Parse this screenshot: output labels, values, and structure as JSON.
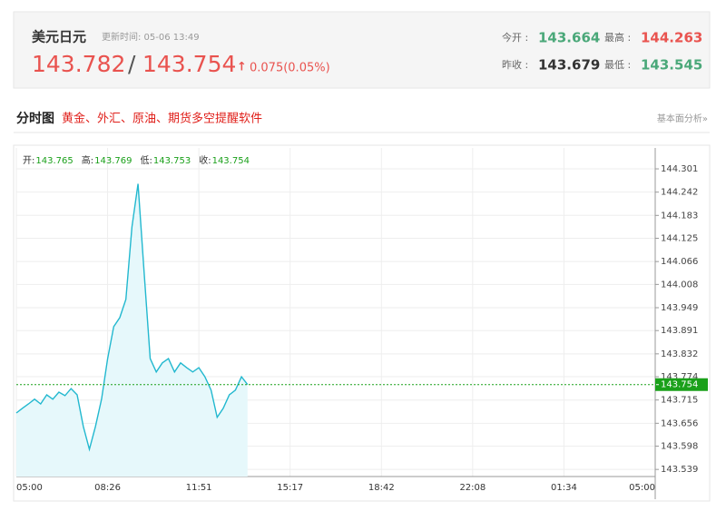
{
  "header": {
    "name": "美元日元",
    "update_time": "更新时间: 05-06 13:49",
    "bid": 143.782,
    "separator": "/",
    "ask": 143.754,
    "arrow": "↑",
    "change": "0.075(0.05%)",
    "stats": [
      {
        "label": "今开 :",
        "value": 143.664,
        "tone": "green"
      },
      {
        "label": "最高 :",
        "value": 144.263,
        "tone": "red"
      },
      {
        "label": "昨收 :",
        "value": 143.679,
        "tone": "dark"
      },
      {
        "label": "最低 :",
        "value": 143.545,
        "tone": "green"
      }
    ]
  },
  "section": {
    "title": "分时图",
    "promo": "黄金、外汇、原油、期货多空提醒软件",
    "link": "基本面分析»"
  },
  "chart_data": {
    "type": "line",
    "ohlc": [
      {
        "label": "开:",
        "value": 143.765
      },
      {
        "label": "高:",
        "value": 143.769
      },
      {
        "label": "低:",
        "value": 143.753
      },
      {
        "label": "收:",
        "value": 143.754
      }
    ],
    "categories": [
      "05:00",
      null,
      null,
      null,
      null,
      null,
      null,
      null,
      null,
      null,
      null,
      null,
      null,
      null,
      null,
      "08:26",
      null,
      null,
      null,
      null,
      null,
      null,
      null,
      null,
      null,
      null,
      null,
      null,
      null,
      null,
      "11:51",
      null,
      null,
      null,
      null,
      null,
      null,
      null,
      null,
      null,
      null,
      null,
      null,
      null,
      null,
      "15:17",
      null,
      null,
      null,
      null,
      null,
      null,
      null,
      null,
      null,
      null,
      null,
      null,
      null,
      null,
      "18:42",
      null,
      null,
      null,
      null,
      null,
      null,
      null,
      null,
      null,
      null,
      null,
      null,
      null,
      null,
      "22:08",
      null,
      null,
      null,
      null,
      null,
      null,
      null,
      null,
      null,
      null,
      null,
      null,
      null,
      null,
      "01:34",
      null,
      null,
      null,
      null,
      null,
      null,
      null,
      null,
      null,
      null,
      null,
      null,
      null,
      null,
      "05:00"
    ],
    "values": [
      143.682,
      143.694,
      143.705,
      143.717,
      143.705,
      143.728,
      143.717,
      143.735,
      143.726,
      143.744,
      143.728,
      143.648,
      143.59,
      143.648,
      143.717,
      143.82,
      143.901,
      143.924,
      143.97,
      144.154,
      144.263,
      144.039,
      143.82,
      143.786,
      143.809,
      143.82,
      143.786,
      143.809,
      143.797,
      143.786,
      143.797,
      143.774,
      143.74,
      143.671,
      143.694,
      143.728,
      143.74,
      143.774,
      143.754,
      null,
      null,
      null,
      null,
      null,
      null,
      null,
      null,
      null,
      null,
      null,
      null,
      null,
      null,
      null,
      null,
      null,
      null,
      null,
      null,
      null,
      null,
      null,
      null,
      null,
      null,
      null,
      null,
      null,
      null,
      null,
      null,
      null,
      null,
      null,
      null,
      null,
      null,
      null,
      null,
      null,
      null,
      null,
      null,
      null,
      null,
      null,
      null,
      null,
      null,
      null,
      null,
      null,
      null,
      null,
      null,
      null,
      null,
      null,
      null,
      null,
      null,
      null,
      null,
      null,
      null,
      null
    ],
    "color": "#22b8cf",
    "area_color": "#e6f8fb",
    "last_price": 143.754,
    "last_color": "#1aa01a",
    "ylim": [
      143.521,
      144.354
    ],
    "yticks": [
      144.301,
      144.242,
      144.183,
      144.125,
      144.066,
      144.008,
      143.949,
      143.891,
      143.832,
      143.774,
      143.715,
      143.656,
      143.598,
      143.539
    ],
    "grid": true
  }
}
